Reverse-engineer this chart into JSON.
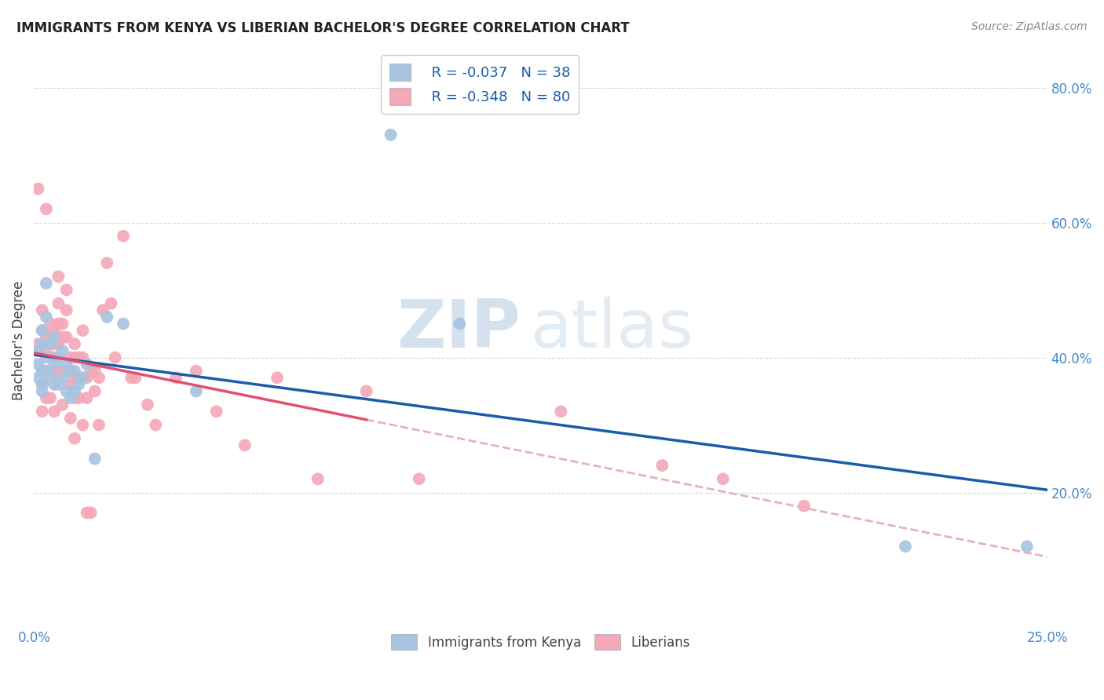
{
  "title": "IMMIGRANTS FROM KENYA VS LIBERIAN BACHELOR'S DEGREE CORRELATION CHART",
  "source": "Source: ZipAtlas.com",
  "ylabel": "Bachelor's Degree",
  "xlim": [
    0.0,
    0.25
  ],
  "ylim": [
    0.0,
    0.85
  ],
  "x_ticks": [
    0.0,
    0.05,
    0.1,
    0.15,
    0.2,
    0.25
  ],
  "y_ticks": [
    0.0,
    0.2,
    0.4,
    0.6,
    0.8
  ],
  "kenya_color": "#a8c4e0",
  "liberia_color": "#f4a8b8",
  "kenya_line_color": "#1a5ca8",
  "liberia_line_color": "#e05070",
  "liberia_dash_color": "#e8b0c0",
  "legend_kenya_R": "R = -0.037",
  "legend_kenya_N": "N = 38",
  "legend_liberia_R": "R = -0.348",
  "legend_liberia_N": "N = 80",
  "kenya_scatter_x": [
    0.001,
    0.001,
    0.001,
    0.002,
    0.002,
    0.002,
    0.002,
    0.002,
    0.003,
    0.003,
    0.003,
    0.003,
    0.004,
    0.004,
    0.005,
    0.005,
    0.005,
    0.006,
    0.006,
    0.007,
    0.007,
    0.008,
    0.008,
    0.009,
    0.009,
    0.01,
    0.01,
    0.011,
    0.012,
    0.013,
    0.015,
    0.018,
    0.022,
    0.04,
    0.088,
    0.105,
    0.215,
    0.245
  ],
  "kenya_scatter_y": [
    0.39,
    0.41,
    0.37,
    0.44,
    0.42,
    0.38,
    0.36,
    0.35,
    0.51,
    0.46,
    0.4,
    0.38,
    0.42,
    0.37,
    0.43,
    0.39,
    0.36,
    0.4,
    0.36,
    0.41,
    0.37,
    0.39,
    0.35,
    0.38,
    0.34,
    0.38,
    0.35,
    0.36,
    0.37,
    0.39,
    0.25,
    0.46,
    0.45,
    0.35,
    0.73,
    0.45,
    0.12,
    0.12
  ],
  "liberia_scatter_x": [
    0.001,
    0.001,
    0.002,
    0.002,
    0.002,
    0.002,
    0.002,
    0.003,
    0.003,
    0.003,
    0.003,
    0.003,
    0.004,
    0.004,
    0.004,
    0.004,
    0.005,
    0.005,
    0.005,
    0.005,
    0.005,
    0.006,
    0.006,
    0.006,
    0.006,
    0.006,
    0.007,
    0.007,
    0.007,
    0.007,
    0.008,
    0.008,
    0.008,
    0.008,
    0.009,
    0.009,
    0.009,
    0.009,
    0.01,
    0.01,
    0.01,
    0.01,
    0.01,
    0.011,
    0.011,
    0.011,
    0.012,
    0.012,
    0.012,
    0.012,
    0.013,
    0.013,
    0.013,
    0.014,
    0.014,
    0.015,
    0.015,
    0.016,
    0.016,
    0.017,
    0.018,
    0.019,
    0.02,
    0.022,
    0.024,
    0.025,
    0.028,
    0.03,
    0.035,
    0.04,
    0.045,
    0.052,
    0.06,
    0.07,
    0.082,
    0.095,
    0.13,
    0.155,
    0.17,
    0.19
  ],
  "liberia_scatter_y": [
    0.42,
    0.65,
    0.38,
    0.36,
    0.47,
    0.44,
    0.32,
    0.43,
    0.41,
    0.38,
    0.34,
    0.62,
    0.45,
    0.42,
    0.38,
    0.34,
    0.44,
    0.42,
    0.4,
    0.38,
    0.32,
    0.52,
    0.48,
    0.45,
    0.42,
    0.38,
    0.45,
    0.43,
    0.38,
    0.33,
    0.5,
    0.47,
    0.43,
    0.38,
    0.4,
    0.38,
    0.36,
    0.31,
    0.42,
    0.4,
    0.37,
    0.34,
    0.28,
    0.4,
    0.37,
    0.34,
    0.44,
    0.4,
    0.37,
    0.3,
    0.37,
    0.34,
    0.17,
    0.38,
    0.17,
    0.38,
    0.35,
    0.37,
    0.3,
    0.47,
    0.54,
    0.48,
    0.4,
    0.58,
    0.37,
    0.37,
    0.33,
    0.3,
    0.37,
    0.38,
    0.32,
    0.27,
    0.37,
    0.22,
    0.35,
    0.22,
    0.32,
    0.24,
    0.22,
    0.18
  ]
}
